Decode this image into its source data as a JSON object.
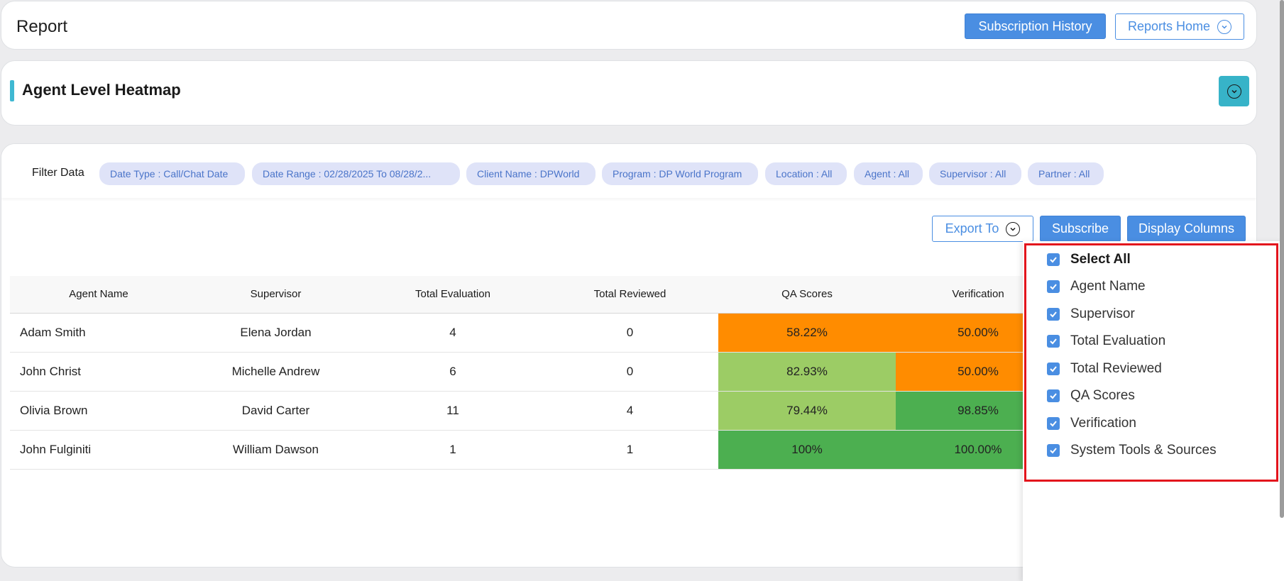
{
  "header": {
    "title": "Report",
    "subscription_history_label": "Subscription History",
    "reports_home_label": "Reports Home"
  },
  "section": {
    "title": "Agent Level Heatmap"
  },
  "filters": {
    "label": "Filter Data",
    "chips": [
      "Date Type : Call/Chat Date",
      "Date Range : 02/28/2025 To 08/28/2...",
      "Client Name : DPWorld",
      "Program : DP World Program",
      "Location : All",
      "Agent : All",
      "Supervisor : All",
      "Partner : All"
    ]
  },
  "toolbar": {
    "export_label": "Export To",
    "subscribe_label": "Subscribe",
    "display_columns_label": "Display Columns"
  },
  "table": {
    "columns": [
      "Agent Name",
      "Supervisor",
      "Total Evaluation",
      "Total Reviewed",
      "QA Scores",
      "Verification"
    ],
    "rows": [
      [
        "Adam Smith",
        "Elena Jordan",
        "4",
        "0",
        "58.22%",
        "50.00%"
      ],
      [
        "John Christ",
        "Michelle Andrew",
        "6",
        "0",
        "82.93%",
        "50.00%"
      ],
      [
        "Olivia Brown",
        "David Carter",
        "11",
        "4",
        "79.44%",
        "98.85%"
      ],
      [
        "John Fulginiti",
        "William Dawson",
        "1",
        "1",
        "100%",
        "100.00%"
      ]
    ],
    "heat_colors": {
      "orange": "#ff8c00",
      "light_green": "#9ccc65",
      "green": "#4caf50"
    }
  },
  "columns_dropdown": {
    "options": [
      "Select All",
      "Agent Name",
      "Supervisor",
      "Total Evaluation",
      "Total Reviewed",
      "QA Scores",
      "Verification",
      "System Tools & Sources"
    ]
  }
}
